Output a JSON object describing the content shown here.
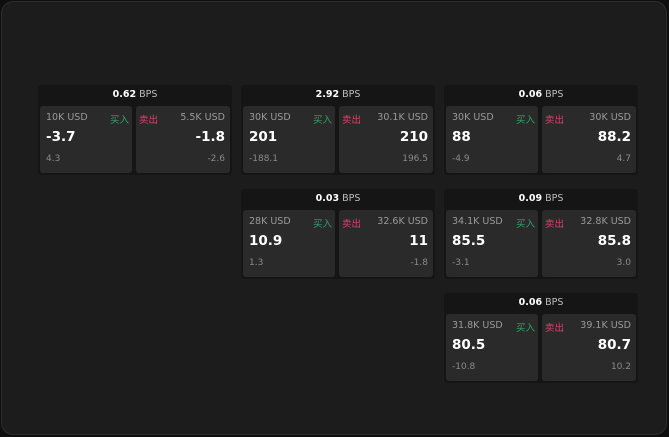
{
  "unit": "BPS",
  "buy_label": "买入",
  "sell_label": "卖出",
  "colors": {
    "buy": "#2ea36a",
    "sell": "#d9406a"
  },
  "panels": [
    {
      "col": 0,
      "row": 0,
      "spread": "0.62",
      "buy": {
        "size": "10K USD",
        "price": "-3.7",
        "delta": "4.3"
      },
      "sell": {
        "size": "5.5K USD",
        "price": "-1.8",
        "delta": "-2.6"
      }
    },
    {
      "col": 1,
      "row": 0,
      "spread": "2.92",
      "buy": {
        "size": "30K USD",
        "price": "201",
        "delta": "-188.1"
      },
      "sell": {
        "size": "30.1K USD",
        "price": "210",
        "delta": "196.5"
      }
    },
    {
      "col": 2,
      "row": 0,
      "spread": "0.06",
      "buy": {
        "size": "30K USD",
        "price": "88",
        "delta": "-4.9"
      },
      "sell": {
        "size": "30K USD",
        "price": "88.2",
        "delta": "4.7"
      }
    },
    {
      "col": 1,
      "row": 1,
      "spread": "0.03",
      "buy": {
        "size": "28K USD",
        "price": "10.9",
        "delta": "1.3"
      },
      "sell": {
        "size": "32.6K USD",
        "price": "11",
        "delta": "-1.8"
      }
    },
    {
      "col": 2,
      "row": 1,
      "spread": "0.09",
      "buy": {
        "size": "34.1K USD",
        "price": "85.5",
        "delta": "-3.1"
      },
      "sell": {
        "size": "32.8K USD",
        "price": "85.8",
        "delta": "3.0"
      }
    },
    {
      "col": 2,
      "row": 2,
      "spread": "0.06",
      "buy": {
        "size": "31.8K USD",
        "price": "80.5",
        "delta": "-10.8"
      },
      "sell": {
        "size": "39.1K USD",
        "price": "80.7",
        "delta": "10.2"
      }
    }
  ]
}
